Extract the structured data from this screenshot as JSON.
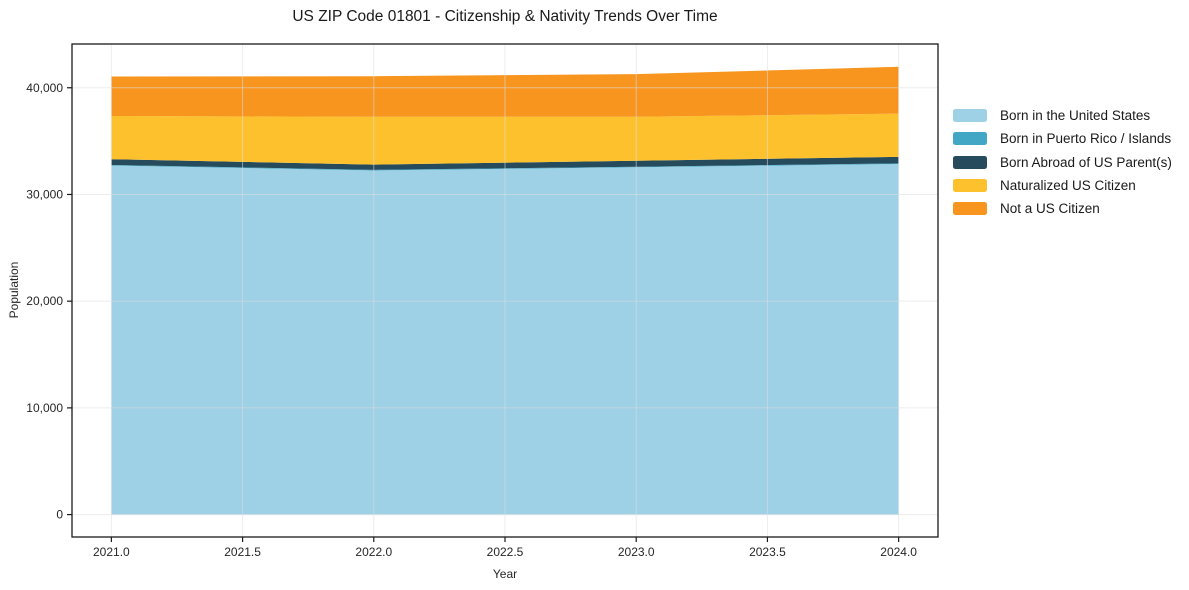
{
  "chart_data": {
    "type": "area",
    "stacked": true,
    "title": "US ZIP Code 01801 - Citizenship & Nativity Trends Over Time",
    "xlabel": "Year",
    "ylabel": "Population",
    "x": [
      2021,
      2022,
      2023,
      2024
    ],
    "series": [
      {
        "name": "Born in the United States",
        "color": "#9ED0E6",
        "values": [
          32700,
          32250,
          32550,
          32850
        ]
      },
      {
        "name": "Born in Puerto Rico / Islands",
        "color": "#41A7C5",
        "values": [
          60,
          50,
          50,
          60
        ]
      },
      {
        "name": "Born Abroad of US Parent(s)",
        "color": "#264B5C",
        "values": [
          540,
          500,
          550,
          610
        ]
      },
      {
        "name": "Naturalized US Citizen",
        "color": "#FCC12D",
        "values": [
          4050,
          4480,
          4130,
          4060
        ]
      },
      {
        "name": "Not a US Citizen",
        "color": "#F7951F",
        "values": [
          3700,
          3800,
          4000,
          4380
        ]
      }
    ],
    "xlim": [
      2020.85,
      2024.15
    ],
    "ylim": [
      -2100,
      44100
    ],
    "xticks": [
      2021.0,
      2021.5,
      2022.0,
      2022.5,
      2023.0,
      2023.5,
      2024.0
    ],
    "xtick_labels": [
      "2021.0",
      "2021.5",
      "2022.0",
      "2022.5",
      "2023.0",
      "2023.5",
      "2024.0"
    ],
    "yticks": [
      0,
      10000,
      20000,
      30000,
      40000
    ],
    "ytick_labels": [
      "0",
      "10,000",
      "20,000",
      "30,000",
      "40,000"
    ],
    "grid": true,
    "grid_color": "#dedede",
    "spine_color": "#1a1a1a",
    "background": "#ffffff",
    "legend_position": "right"
  }
}
